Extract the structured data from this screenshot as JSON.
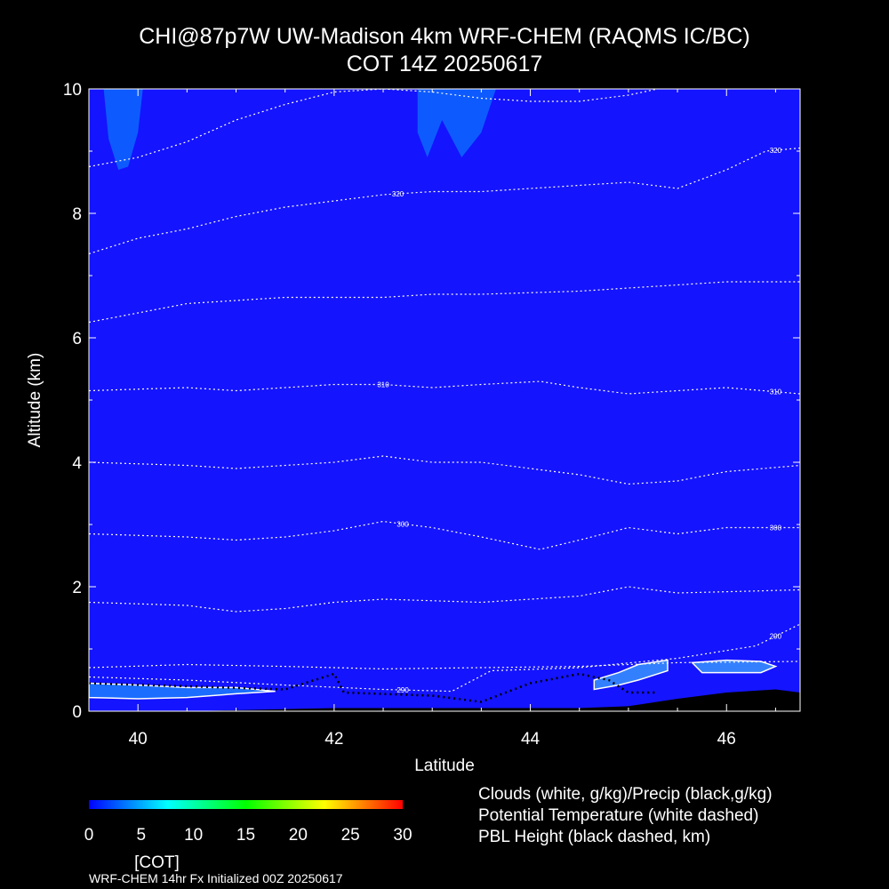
{
  "title_line1": "CHI@87p7W UW-Madison 4km WRF-CHEM (RAQMS IC/BC)",
  "title_line2": "COT 14Z 20250617",
  "legend_text": [
    "Clouds (white, g/kg)/Precip (black,g/kg)",
    "Potential Temperature (white dashed)",
    "PBL Height (black dashed, km)"
  ],
  "footer": "WRF-CHEM 14hr  Fx Initialized 00Z 20250617",
  "colorbar": {
    "label": "[COT]",
    "ticks": [
      0,
      5,
      10,
      15,
      20,
      25,
      30
    ],
    "colors": [
      "#0000ff",
      "#0080ff",
      "#00ffff",
      "#00ff80",
      "#00ff00",
      "#80ff00",
      "#ffff00",
      "#ff8000",
      "#ff0000"
    ]
  },
  "chart_data": {
    "type": "contour",
    "xlabel": "Latitude",
    "ylabel": "Altitude (km)",
    "xlim": [
      39.5,
      46.75
    ],
    "ylim": [
      0,
      10
    ],
    "xticks": [
      40,
      42,
      44,
      46
    ],
    "yticks": [
      0,
      2,
      4,
      6,
      8,
      10
    ],
    "background_color": "#1414ff",
    "theta_contours": [
      {
        "points": [
          [
            39.5,
            0.7
          ],
          [
            40.5,
            0.75
          ],
          [
            41.5,
            0.72
          ],
          [
            42.5,
            0.68
          ],
          [
            43.5,
            0.7
          ],
          [
            44.5,
            0.72
          ],
          [
            45.5,
            0.78
          ],
          [
            46.75,
            0.8
          ]
        ]
      },
      {
        "label": "290",
        "label_x": 42.7,
        "points": [
          [
            39.5,
            0.55
          ],
          [
            40.5,
            0.5
          ],
          [
            41.5,
            0.42
          ],
          [
            42.5,
            0.35
          ],
          [
            43.2,
            0.32
          ],
          [
            43.6,
            0.65
          ],
          [
            44.5,
            0.7
          ],
          [
            45.5,
            0.85
          ],
          [
            46.3,
            1.05
          ],
          [
            46.75,
            1.4
          ]
        ],
        "label2": "290",
        "label2_x": 46.5
      },
      {
        "points": [
          [
            39.5,
            1.75
          ],
          [
            40.5,
            1.7
          ],
          [
            41.0,
            1.6
          ],
          [
            41.5,
            1.65
          ],
          [
            42.0,
            1.75
          ],
          [
            42.5,
            1.8
          ],
          [
            43.5,
            1.75
          ],
          [
            44.5,
            1.85
          ],
          [
            45.0,
            2.0
          ],
          [
            45.5,
            1.9
          ],
          [
            46.75,
            1.95
          ]
        ]
      },
      {
        "label": "300",
        "label_x": 42.7,
        "points": [
          [
            39.5,
            2.85
          ],
          [
            40.5,
            2.8
          ],
          [
            41.0,
            2.75
          ],
          [
            41.5,
            2.8
          ],
          [
            42.0,
            2.9
          ],
          [
            42.5,
            3.05
          ],
          [
            43.0,
            2.95
          ],
          [
            43.5,
            2.8
          ],
          [
            44.1,
            2.6
          ],
          [
            44.5,
            2.75
          ],
          [
            45.0,
            2.95
          ],
          [
            45.5,
            2.85
          ],
          [
            46.0,
            2.95
          ],
          [
            46.75,
            2.95
          ]
        ],
        "label2": "300",
        "label2_x": 46.5
      },
      {
        "points": [
          [
            39.5,
            4.0
          ],
          [
            40.5,
            3.95
          ],
          [
            41.0,
            3.9
          ],
          [
            41.5,
            3.95
          ],
          [
            42.0,
            4.0
          ],
          [
            42.5,
            4.1
          ],
          [
            43.0,
            4.0
          ],
          [
            43.5,
            4.0
          ],
          [
            44.5,
            3.8
          ],
          [
            45.0,
            3.65
          ],
          [
            45.5,
            3.7
          ],
          [
            46.0,
            3.85
          ],
          [
            46.75,
            3.95
          ]
        ]
      },
      {
        "label": "310",
        "label_x": 42.5,
        "points": [
          [
            39.5,
            5.15
          ],
          [
            40.5,
            5.2
          ],
          [
            41.0,
            5.15
          ],
          [
            41.5,
            5.2
          ],
          [
            42.0,
            5.25
          ],
          [
            42.5,
            5.25
          ],
          [
            43.0,
            5.2
          ],
          [
            43.5,
            5.25
          ],
          [
            44.1,
            5.3
          ],
          [
            44.5,
            5.2
          ],
          [
            45.0,
            5.1
          ],
          [
            45.5,
            5.15
          ],
          [
            46.0,
            5.2
          ],
          [
            46.75,
            5.1
          ]
        ],
        "label2": "310",
        "label2_x": 46.5
      },
      {
        "points": [
          [
            39.5,
            6.25
          ],
          [
            40.0,
            6.4
          ],
          [
            40.5,
            6.55
          ],
          [
            41.0,
            6.6
          ],
          [
            41.5,
            6.65
          ],
          [
            42.0,
            6.65
          ],
          [
            42.5,
            6.65
          ],
          [
            43.0,
            6.7
          ],
          [
            43.5,
            6.7
          ],
          [
            44.5,
            6.75
          ],
          [
            45.0,
            6.8
          ],
          [
            45.5,
            6.85
          ],
          [
            46.0,
            6.9
          ],
          [
            46.75,
            6.9
          ]
        ]
      },
      {
        "label": "320",
        "label_x": 42.65,
        "points": [
          [
            39.5,
            7.35
          ],
          [
            40.0,
            7.6
          ],
          [
            40.5,
            7.75
          ],
          [
            41.0,
            7.95
          ],
          [
            41.5,
            8.1
          ],
          [
            42.0,
            8.2
          ],
          [
            42.5,
            8.3
          ],
          [
            43.0,
            8.35
          ],
          [
            43.5,
            8.35
          ],
          [
            44.0,
            8.4
          ],
          [
            44.5,
            8.45
          ],
          [
            45.0,
            8.5
          ],
          [
            45.5,
            8.4
          ],
          [
            46.0,
            8.7
          ],
          [
            46.4,
            9.0
          ],
          [
            46.75,
            9.05
          ]
        ],
        "label2": "320",
        "label2_x": 46.5
      },
      {
        "points": [
          [
            39.5,
            8.75
          ],
          [
            40.0,
            8.9
          ],
          [
            40.5,
            9.15
          ],
          [
            41.0,
            9.5
          ],
          [
            41.5,
            9.75
          ],
          [
            42.0,
            9.95
          ],
          [
            42.5,
            10.0
          ],
          [
            43.0,
            9.95
          ],
          [
            43.5,
            9.85
          ],
          [
            44.0,
            9.8
          ],
          [
            44.5,
            9.8
          ],
          [
            45.0,
            9.9
          ],
          [
            45.3,
            10.0
          ]
        ]
      }
    ],
    "cloud_regions": [
      {
        "color": "#1a6dff",
        "outline": "#ffffff",
        "points": [
          [
            39.5,
            0.45
          ],
          [
            40.0,
            0.42
          ],
          [
            40.5,
            0.38
          ],
          [
            41.0,
            0.38
          ],
          [
            41.4,
            0.32
          ],
          [
            41.0,
            0.28
          ],
          [
            40.5,
            0.22
          ],
          [
            40.0,
            0.2
          ],
          [
            39.5,
            0.22
          ]
        ]
      },
      {
        "color": "#3380ff",
        "outline": "#ffffff",
        "points": [
          [
            44.65,
            0.5
          ],
          [
            44.9,
            0.62
          ],
          [
            45.1,
            0.75
          ],
          [
            45.4,
            0.82
          ],
          [
            45.4,
            0.65
          ],
          [
            45.1,
            0.5
          ],
          [
            44.9,
            0.42
          ],
          [
            44.65,
            0.35
          ]
        ]
      },
      {
        "color": "#3380ff",
        "outline": "#ffffff",
        "points": [
          [
            45.65,
            0.78
          ],
          [
            46.0,
            0.82
          ],
          [
            46.35,
            0.8
          ],
          [
            46.5,
            0.72
          ],
          [
            46.35,
            0.62
          ],
          [
            46.0,
            0.62
          ],
          [
            45.75,
            0.62
          ]
        ]
      },
      {
        "color": "#0d5bff",
        "outline": "none",
        "points": [
          [
            39.65,
            10.0
          ],
          [
            39.7,
            9.2
          ],
          [
            39.8,
            8.7
          ],
          [
            39.9,
            8.75
          ],
          [
            40.0,
            9.3
          ],
          [
            40.05,
            10.0
          ]
        ]
      },
      {
        "color": "#0d5bff",
        "outline": "none",
        "points": [
          [
            42.85,
            10.0
          ],
          [
            42.85,
            9.3
          ],
          [
            42.95,
            8.9
          ],
          [
            43.1,
            9.5
          ],
          [
            43.3,
            8.9
          ],
          [
            43.5,
            9.3
          ],
          [
            43.65,
            10.0
          ]
        ]
      }
    ],
    "pbl": [
      [
        39.5,
        0.45
      ],
      [
        40.5,
        0.4
      ],
      [
        41.5,
        0.35
      ],
      [
        42.0,
        0.6
      ],
      [
        42.1,
        0.3
      ],
      [
        43.0,
        0.25
      ],
      [
        43.5,
        0.15
      ],
      [
        44.0,
        0.45
      ],
      [
        44.5,
        0.6
      ],
      [
        44.8,
        0.5
      ],
      [
        45.0,
        0.3
      ],
      [
        45.3,
        0.3
      ]
    ],
    "terrain": [
      [
        39.5,
        0.0
      ],
      [
        40.5,
        0.0
      ],
      [
        42.0,
        0.05
      ],
      [
        43.5,
        0.05
      ],
      [
        44.5,
        0.05
      ],
      [
        45.0,
        0.08
      ],
      [
        45.5,
        0.2
      ],
      [
        46.0,
        0.3
      ],
      [
        46.5,
        0.35
      ],
      [
        46.75,
        0.3
      ]
    ]
  }
}
